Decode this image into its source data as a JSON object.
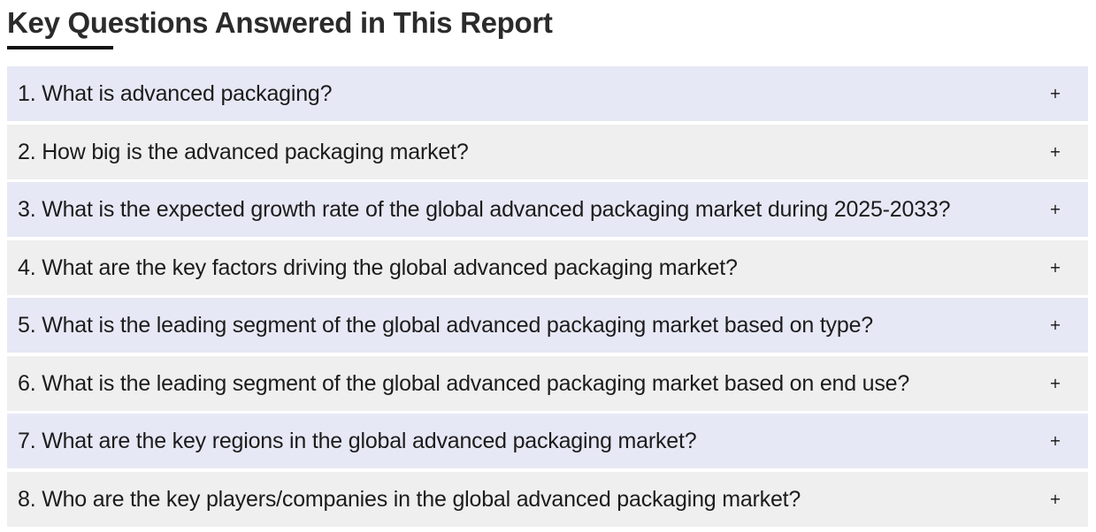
{
  "section": {
    "title": "Key Questions Answered in This Report"
  },
  "faq": {
    "toggle_icon": "+",
    "items": [
      {
        "question": "1. What is advanced packaging?"
      },
      {
        "question": "2. How big is the advanced packaging market?"
      },
      {
        "question": "3. What is the expected growth rate of the global advanced packaging market during 2025-2033?"
      },
      {
        "question": "4. What are the key factors driving the global advanced packaging market?"
      },
      {
        "question": "5. What is the leading segment of the global advanced packaging market based on type?"
      },
      {
        "question": "6. What is the leading segment of the global advanced packaging market based on end use?"
      },
      {
        "question": "7. What are the key regions in the global advanced packaging market?"
      },
      {
        "question": "8. Who are the key players/companies in the global advanced packaging market?"
      }
    ]
  },
  "colors": {
    "row_odd": "#e7e8f5",
    "row_even": "#efefef",
    "underline": "#111111"
  }
}
